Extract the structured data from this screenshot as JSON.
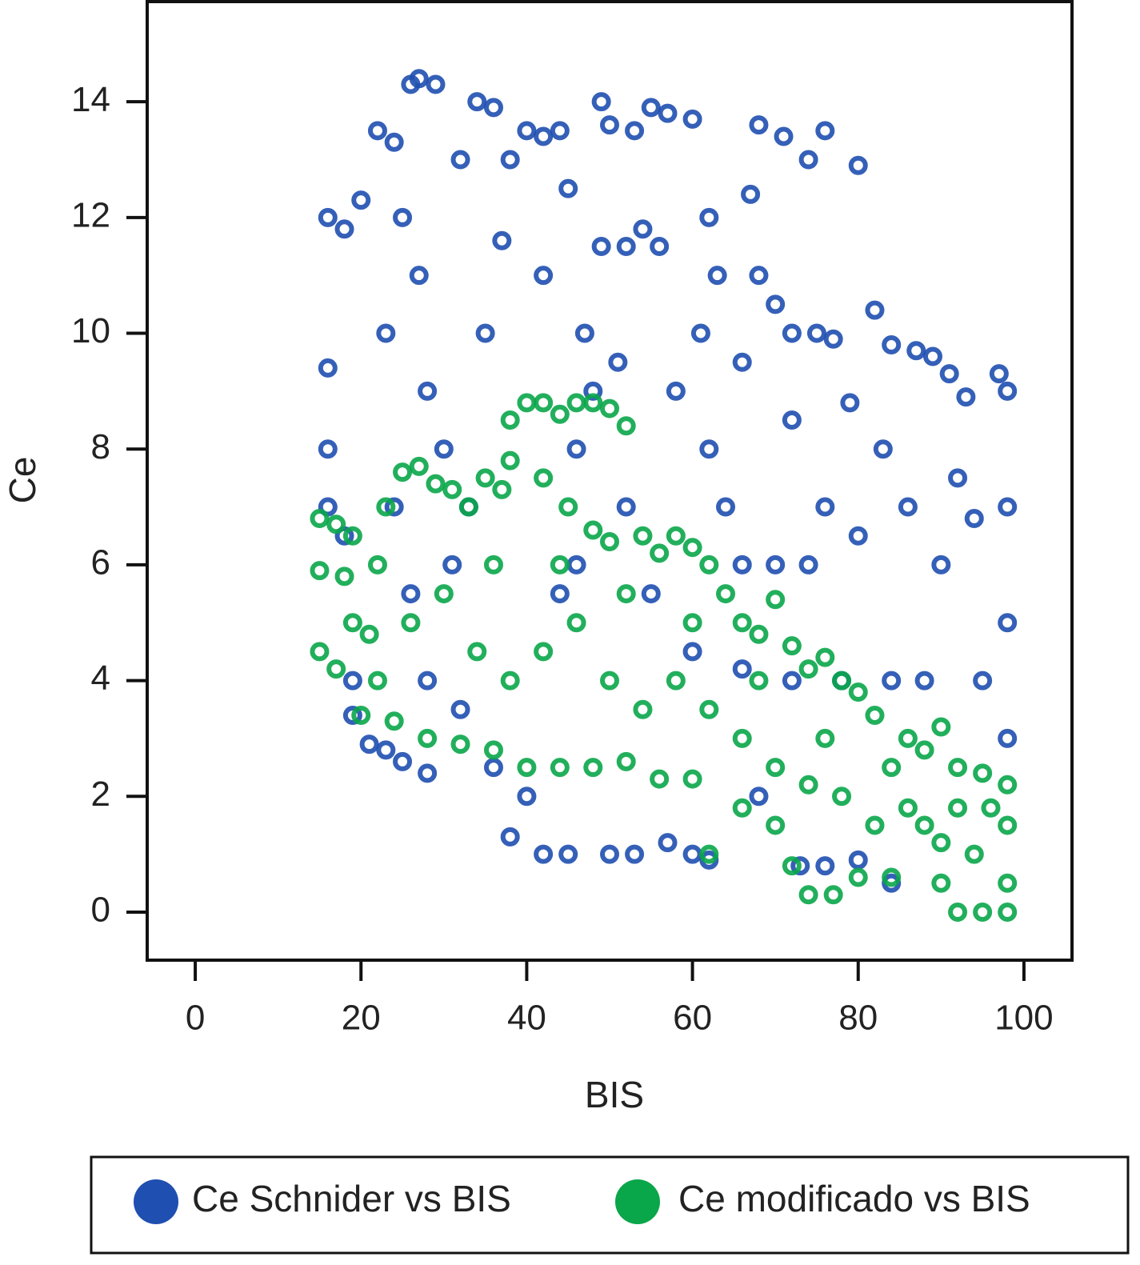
{
  "chart_data": {
    "type": "scatter",
    "x_label": "BIS",
    "y_label": "Ce",
    "xlim": [
      -5.8,
      105.8
    ],
    "ylim": [
      -0.83,
      15.73
    ],
    "xticks": [
      0,
      20,
      40,
      60,
      80,
      100
    ],
    "yticks": [
      0,
      2,
      4,
      6,
      8,
      10,
      12,
      14
    ],
    "legend": "bottom",
    "series": [
      {
        "name": "Ce Schnider vs BIS",
        "color": "#1f4fb0",
        "x": [
          16,
          18,
          20,
          16,
          16,
          16,
          18,
          19,
          19,
          21,
          23,
          25,
          28,
          22,
          24,
          26,
          27,
          29,
          25,
          27,
          23,
          28,
          30,
          32,
          34,
          36,
          38,
          40,
          42,
          44,
          35,
          37,
          33,
          31,
          42,
          45,
          47,
          49,
          50,
          53,
          55,
          57,
          49,
          52,
          54,
          56,
          46,
          48,
          51,
          38,
          42,
          45,
          50,
          53,
          57,
          60,
          62,
          36,
          40,
          60,
          62,
          63,
          61,
          58,
          62,
          64,
          66,
          68,
          71,
          74,
          76,
          80,
          67,
          68,
          70,
          66,
          72,
          75,
          77,
          79,
          82,
          84,
          87,
          89,
          91,
          93,
          97,
          98,
          98,
          98,
          98,
          94,
          92,
          90,
          86,
          83,
          80,
          76,
          74,
          78,
          84,
          88,
          95,
          72,
          70,
          66,
          68,
          73,
          76,
          80,
          84,
          72,
          60,
          55,
          52,
          46,
          44,
          26,
          24,
          28,
          32
        ],
        "values": [
          12,
          11.8,
          12.3,
          9.4,
          8,
          7,
          6.5,
          4,
          3.4,
          2.9,
          2.8,
          2.6,
          2.4,
          13.5,
          13.3,
          14.3,
          14.4,
          14.3,
          12,
          11,
          10,
          9,
          8,
          13,
          14,
          13.9,
          13,
          13.5,
          13.4,
          13.5,
          10,
          11.6,
          7,
          6,
          11,
          12.5,
          10,
          14,
          13.6,
          13.5,
          13.9,
          13.8,
          11.5,
          11.5,
          11.8,
          11.5,
          8,
          9,
          9.5,
          1.3,
          1,
          1,
          1,
          1,
          1.2,
          1,
          0.9,
          2.5,
          2,
          13.7,
          12,
          11,
          10,
          9,
          8,
          7,
          6,
          13.6,
          13.4,
          13,
          13.5,
          12.9,
          12.4,
          11,
          10.5,
          9.5,
          10,
          10,
          9.9,
          8.8,
          10.4,
          9.8,
          9.7,
          9.6,
          9.3,
          8.9,
          9.3,
          9,
          7,
          5,
          3,
          6.8,
          7.5,
          6,
          7,
          8,
          6.5,
          7,
          6,
          4,
          4,
          4,
          4,
          8.5,
          6,
          4.2,
          2,
          0.8,
          0.8,
          0.9,
          0.5,
          4,
          4.5,
          5.5,
          7,
          6,
          5.5,
          5.5,
          7,
          4,
          3.5
        ]
      },
      {
        "name": "Ce modificado vs BIS",
        "color": "#0aa64a",
        "x": [
          15,
          17,
          19,
          15,
          18,
          15,
          17,
          19,
          21,
          22,
          23,
          25,
          27,
          29,
          31,
          33,
          35,
          37,
          38,
          40,
          42,
          44,
          46,
          48,
          50,
          52,
          38,
          42,
          45,
          48,
          50,
          54,
          56,
          58,
          60,
          62,
          64,
          66,
          68,
          70,
          72,
          74,
          76,
          78,
          80,
          82,
          86,
          88,
          90,
          92,
          95,
          98,
          98,
          98,
          98,
          95,
          92,
          90,
          88,
          84,
          80,
          77,
          74,
          72,
          70,
          66,
          62,
          60,
          56,
          52,
          48,
          44,
          40,
          36,
          32,
          28,
          24,
          20,
          22,
          26,
          30,
          34,
          38,
          42,
          46,
          50,
          54,
          58,
          62,
          66,
          70,
          74,
          78,
          82,
          86,
          90,
          94,
          96,
          36,
          44,
          52,
          60,
          68,
          76,
          84,
          92
        ],
        "values": [
          6.8,
          6.7,
          6.5,
          5.9,
          5.8,
          4.5,
          4.2,
          5,
          4.8,
          6,
          7,
          7.6,
          7.7,
          7.4,
          7.3,
          7,
          7.5,
          7.3,
          8.5,
          8.8,
          8.8,
          8.6,
          8.8,
          8.8,
          8.7,
          8.4,
          7.8,
          7.5,
          7,
          6.6,
          6.4,
          6.5,
          6.2,
          6.5,
          6.3,
          6,
          5.5,
          5,
          4.8,
          5.4,
          4.6,
          4.2,
          4.4,
          4,
          3.8,
          3.4,
          3,
          2.8,
          3.2,
          2.5,
          2.4,
          2.2,
          1.5,
          0.5,
          0,
          0,
          0,
          0.5,
          1.5,
          0.6,
          0.6,
          0.3,
          0.3,
          0.8,
          1.5,
          1.8,
          1,
          2.3,
          2.3,
          2.6,
          2.5,
          2.5,
          2.5,
          2.8,
          2.9,
          3,
          3.3,
          3.4,
          4,
          5,
          5.5,
          4.5,
          4,
          4.5,
          5,
          4,
          3.5,
          4,
          3.5,
          3,
          2.5,
          2.2,
          2,
          1.5,
          1.8,
          1.2,
          1,
          1.8,
          6,
          6,
          5.5,
          5,
          4,
          3,
          2.5,
          1.8
        ]
      }
    ]
  }
}
